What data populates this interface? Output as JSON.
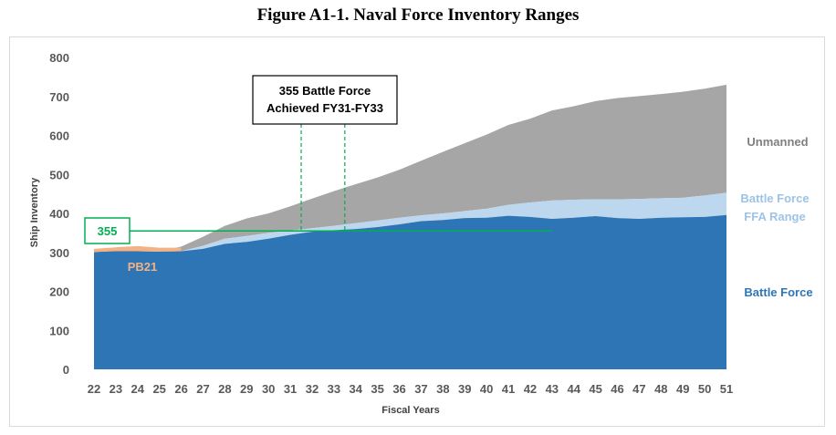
{
  "chart_data": {
    "type": "area",
    "stacked": true,
    "title": "Figure A1-1.  Naval Force Inventory Ranges",
    "xlabel": "Fiscal Years",
    "ylabel": "Ship Inventory",
    "ylim": [
      0,
      800
    ],
    "yticks": [
      0,
      100,
      200,
      300,
      400,
      500,
      600,
      700,
      800
    ],
    "grid": false,
    "x": [
      22,
      23,
      24,
      25,
      26,
      27,
      28,
      29,
      30,
      31,
      32,
      33,
      34,
      35,
      36,
      37,
      38,
      39,
      40,
      41,
      42,
      43,
      44,
      45,
      46,
      47,
      48,
      49,
      50,
      51
    ],
    "series": [
      {
        "name": "Battle Force",
        "color": "#2e75b6",
        "values": [
          301,
          304,
          303,
          302,
          303,
          309,
          322,
          327,
          335,
          345,
          353,
          357,
          360,
          365,
          372,
          380,
          383,
          388,
          389,
          394,
          391,
          386,
          389,
          393,
          388,
          386,
          389,
          390,
          391,
          396
        ]
      },
      {
        "name": "Battle Force FFA Range",
        "color": "#bdd7ee",
        "top": [
          301,
          304,
          303,
          302,
          303,
          317,
          335,
          342,
          350,
          356,
          362,
          368,
          375,
          382,
          389,
          395,
          400,
          406,
          412,
          422,
          428,
          433,
          435,
          436,
          436,
          437,
          439,
          440,
          446,
          453
        ]
      },
      {
        "name": "Unmanned",
        "color": "#a6a6a6",
        "top": [
          301,
          304,
          303,
          302,
          315,
          340,
          368,
          387,
          400,
          418,
          438,
          457,
          475,
          492,
          512,
          535,
          558,
          580,
          602,
          627,
          643,
          664,
          675,
          688,
          696,
          701,
          706,
          712,
          720,
          730
        ]
      },
      {
        "name": "PB21",
        "color": "#f4b183",
        "x": [
          22,
          23,
          24,
          25,
          26
        ],
        "low": [
          301,
          303,
          303,
          302,
          303
        ],
        "high": [
          309,
          313,
          316,
          312,
          312
        ]
      }
    ],
    "reference_line": {
      "label": "355",
      "value": 355,
      "color": "#00b050",
      "x_end": 43
    },
    "annotation": {
      "lines": [
        "355 Battle Force",
        "Achieved FY31-FY33"
      ],
      "markers": [
        31.5,
        33.5
      ],
      "color": "#00b050"
    }
  }
}
